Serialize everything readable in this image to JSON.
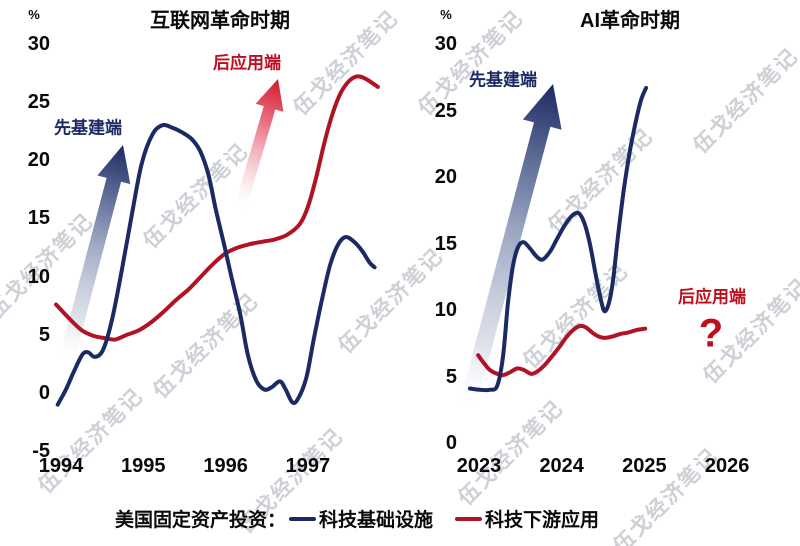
{
  "watermark": {
    "text": "伍戈经济笔记",
    "color": "#a5a9b7"
  },
  "colors": {
    "line_infrastructure": "#1b2a63",
    "line_application": "#b01323",
    "label_blue": "#1b2a63",
    "label_red": "#c00e1f",
    "arrow_blue_head": "#1b2a63",
    "arrow_red_head": "#d7182d"
  },
  "legend": {
    "prefix": "美国固定资产投资：",
    "series": [
      {
        "label": "科技基础设施",
        "color": "#1b2a63"
      },
      {
        "label": "科技下游应用",
        "color": "#b01323"
      }
    ]
  },
  "annotations": {
    "left_infra_label": "先基建端",
    "left_app_label": "后应用端",
    "right_infra_label": "先基建端",
    "right_app_label": "后应用端",
    "question_mark": "?"
  },
  "chart_data": [
    {
      "type": "line",
      "title": "互联网革命时期",
      "ylabel": "%",
      "percent_label": "%",
      "ylim": [
        -5,
        30
      ],
      "yticks": [
        30,
        25,
        20,
        15,
        10,
        5,
        0,
        -5
      ],
      "xticks": [
        1994,
        1995,
        1996,
        1997
      ],
      "xlim": [
        1993.9,
        1998.0
      ],
      "grid": false,
      "legend_position": "bottom",
      "series": [
        {
          "name": "科技基础设施",
          "color": "#1b2a63",
          "points": [
            [
              1993.96,
              -1.0
            ],
            [
              1994.06,
              0.3
            ],
            [
              1994.16,
              1.9
            ],
            [
              1994.26,
              3.3
            ],
            [
              1994.33,
              3.5
            ],
            [
              1994.41,
              3.1
            ],
            [
              1994.51,
              3.7
            ],
            [
              1994.62,
              6.3
            ],
            [
              1994.74,
              10.6
            ],
            [
              1994.86,
              15.3
            ],
            [
              1994.98,
              19.7
            ],
            [
              1995.11,
              22.2
            ],
            [
              1995.23,
              23.0
            ],
            [
              1995.35,
              22.8
            ],
            [
              1995.47,
              22.4
            ],
            [
              1995.59,
              21.8
            ],
            [
              1995.69,
              20.8
            ],
            [
              1995.79,
              18.8
            ],
            [
              1995.88,
              15.8
            ],
            [
              1995.98,
              12.8
            ],
            [
              1996.08,
              9.7
            ],
            [
              1996.18,
              6.7
            ],
            [
              1996.27,
              3.3
            ],
            [
              1996.37,
              1.1
            ],
            [
              1996.47,
              0.3
            ],
            [
              1996.56,
              0.5
            ],
            [
              1996.66,
              1.0
            ],
            [
              1996.73,
              0.3
            ],
            [
              1996.81,
              -0.8
            ],
            [
              1996.88,
              -0.5
            ],
            [
              1996.98,
              1.3
            ],
            [
              1997.07,
              4.6
            ],
            [
              1997.17,
              8.0
            ],
            [
              1997.27,
              11.0
            ],
            [
              1997.37,
              12.8
            ],
            [
              1997.46,
              13.4
            ],
            [
              1997.56,
              13.0
            ],
            [
              1997.66,
              12.2
            ],
            [
              1997.75,
              11.2
            ],
            [
              1997.81,
              10.8
            ]
          ]
        },
        {
          "name": "科技下游应用",
          "color": "#b01323",
          "points": [
            [
              1993.94,
              7.6
            ],
            [
              1994.1,
              6.4
            ],
            [
              1994.25,
              5.4
            ],
            [
              1994.4,
              4.9
            ],
            [
              1994.55,
              4.7
            ],
            [
              1994.66,
              4.6
            ],
            [
              1994.8,
              5.0
            ],
            [
              1994.95,
              5.4
            ],
            [
              1995.1,
              6.1
            ],
            [
              1995.25,
              7.0
            ],
            [
              1995.4,
              8.0
            ],
            [
              1995.55,
              8.9
            ],
            [
              1995.7,
              10.0
            ],
            [
              1995.85,
              11.1
            ],
            [
              1996.0,
              12.0
            ],
            [
              1996.15,
              12.5
            ],
            [
              1996.3,
              12.8
            ],
            [
              1996.45,
              13.0
            ],
            [
              1996.6,
              13.2
            ],
            [
              1996.75,
              13.6
            ],
            [
              1996.9,
              14.5
            ],
            [
              1997.0,
              16.0
            ],
            [
              1997.1,
              18.5
            ],
            [
              1997.2,
              21.5
            ],
            [
              1997.3,
              24.0
            ],
            [
              1997.4,
              25.8
            ],
            [
              1997.5,
              26.8
            ],
            [
              1997.6,
              27.2
            ],
            [
              1997.7,
              27.0
            ],
            [
              1997.85,
              26.3
            ]
          ]
        }
      ]
    },
    {
      "type": "line",
      "title": "AI革命时期",
      "ylabel": "%",
      "percent_label": "%",
      "ylim": [
        0,
        30
      ],
      "yticks": [
        30,
        25,
        20,
        15,
        10,
        5,
        0
      ],
      "xticks": [
        2023,
        2024,
        2025,
        2026
      ],
      "xlim": [
        2022.85,
        2026.6
      ],
      "grid": false,
      "legend_position": "bottom",
      "series": [
        {
          "name": "科技基础设施",
          "color": "#1b2a63",
          "points": [
            [
              2022.89,
              4.1
            ],
            [
              2023.01,
              4.0
            ],
            [
              2023.13,
              4.0
            ],
            [
              2023.22,
              4.3
            ],
            [
              2023.29,
              6.5
            ],
            [
              2023.35,
              10.5
            ],
            [
              2023.41,
              13.3
            ],
            [
              2023.47,
              14.7
            ],
            [
              2023.54,
              15.1
            ],
            [
              2023.62,
              14.6
            ],
            [
              2023.7,
              14.0
            ],
            [
              2023.77,
              13.8
            ],
            [
              2023.86,
              14.4
            ],
            [
              2023.94,
              15.3
            ],
            [
              2024.03,
              16.3
            ],
            [
              2024.11,
              17.0
            ],
            [
              2024.2,
              17.3
            ],
            [
              2024.27,
              16.6
            ],
            [
              2024.34,
              15.0
            ],
            [
              2024.41,
              12.7
            ],
            [
              2024.48,
              10.6
            ],
            [
              2024.52,
              9.9
            ],
            [
              2024.57,
              10.5
            ],
            [
              2024.62,
              12.2
            ],
            [
              2024.68,
              15.5
            ],
            [
              2024.75,
              19.0
            ],
            [
              2024.82,
              21.8
            ],
            [
              2024.89,
              24.0
            ],
            [
              2024.96,
              25.8
            ],
            [
              2025.02,
              26.7
            ]
          ]
        },
        {
          "name": "科技下游应用",
          "color": "#b01323",
          "points": [
            [
              2022.99,
              6.6
            ],
            [
              2023.06,
              6.0
            ],
            [
              2023.13,
              5.5
            ],
            [
              2023.22,
              5.2
            ],
            [
              2023.29,
              5.1
            ],
            [
              2023.37,
              5.3
            ],
            [
              2023.46,
              5.6
            ],
            [
              2023.54,
              5.5
            ],
            [
              2023.63,
              5.2
            ],
            [
              2023.71,
              5.4
            ],
            [
              2023.8,
              5.9
            ],
            [
              2023.88,
              6.5
            ],
            [
              2023.97,
              7.2
            ],
            [
              2024.05,
              7.9
            ],
            [
              2024.14,
              8.5
            ],
            [
              2024.22,
              8.8
            ],
            [
              2024.29,
              8.7
            ],
            [
              2024.37,
              8.3
            ],
            [
              2024.45,
              8.0
            ],
            [
              2024.52,
              7.9
            ],
            [
              2024.61,
              8.0
            ],
            [
              2024.71,
              8.2
            ],
            [
              2024.8,
              8.3
            ],
            [
              2024.91,
              8.5
            ],
            [
              2025.01,
              8.6
            ]
          ]
        }
      ]
    }
  ]
}
